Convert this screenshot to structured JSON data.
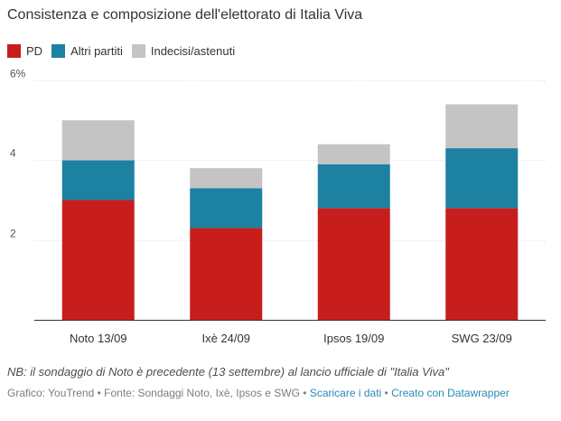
{
  "chart_data": {
    "type": "bar",
    "stacked": true,
    "title": "Consistenza e composizione dell'elettorato di Italia Viva",
    "categories": [
      "Noto 13/09",
      "Ixè 24/09",
      "Ipsos 19/09",
      "SWG 23/09"
    ],
    "series": [
      {
        "name": "PD",
        "color": "#c71e1d",
        "values": [
          3.0,
          2.3,
          2.8,
          2.8
        ]
      },
      {
        "name": "Altri partiti",
        "color": "#1d81a2",
        "values": [
          1.0,
          1.0,
          1.1,
          1.5
        ]
      },
      {
        "name": "Indecisi/astenuti",
        "color": "#c4c4c4",
        "values": [
          1.0,
          0.5,
          0.5,
          1.1
        ]
      }
    ],
    "ylim": [
      0,
      6
    ],
    "yticks": [
      {
        "value": 2,
        "label": "2"
      },
      {
        "value": 4,
        "label": "4"
      },
      {
        "value": 6,
        "label": "6%"
      }
    ],
    "grid": true,
    "legend_position": "top-left"
  },
  "note": "NB: il sondaggio di Noto è precedente (13 settembre) al lancio ufficiale di \"Italia Viva\"",
  "footer": {
    "credits": "Grafico: YouTrend • Fonte: Sondaggi Noto, Ixè, Ipsos e SWG",
    "separator": "•",
    "link_data": "Scaricare i dati",
    "link_datawrapper": "Creato con Datawrapper"
  }
}
